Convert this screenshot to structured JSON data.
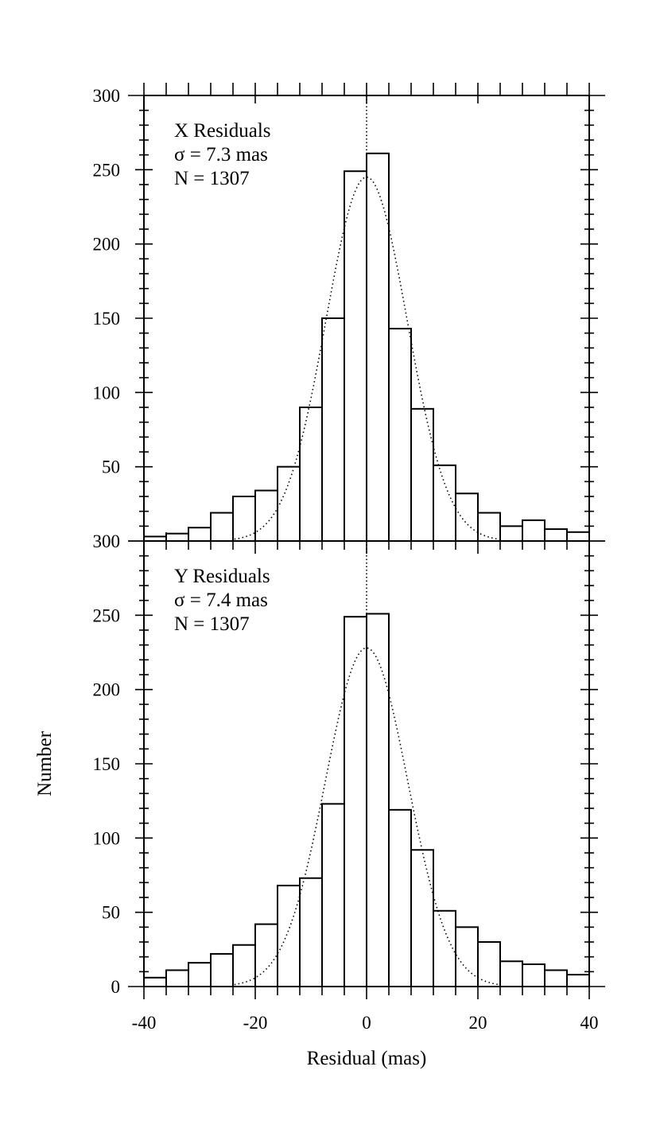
{
  "figure": {
    "ylabel": "Number",
    "xlabel": "Residual (mas)"
  },
  "chart_data": [
    {
      "type": "bar",
      "panel": "top",
      "annotations": [
        "X Residuals",
        "σ = 7.3 mas",
        "N = 1307"
      ],
      "bin_edges": [
        -40,
        -36,
        -32,
        -28,
        -24,
        -20,
        -16,
        -12,
        -8,
        -4,
        0,
        4,
        8,
        12,
        16,
        20,
        24,
        28,
        32,
        36,
        40
      ],
      "values": [
        3,
        5,
        9,
        19,
        30,
        34,
        50,
        90,
        150,
        249,
        261,
        143,
        89,
        51,
        32,
        19,
        10,
        14,
        8,
        6
      ],
      "fit_curve": {
        "kind": "gaussian",
        "amplitude": 245,
        "mean": 0,
        "sigma": 7.3
      },
      "reference_line_x": 0,
      "xlim": [
        -40,
        40
      ],
      "ylim": [
        0,
        300
      ],
      "ytick_labels": [
        "50",
        "100",
        "150",
        "200",
        "250",
        "300"
      ],
      "ytick_values": [
        50,
        100,
        150,
        200,
        250,
        300
      ],
      "xtick_labels": [],
      "grid": false
    },
    {
      "type": "bar",
      "panel": "bottom",
      "annotations": [
        "Y Residuals",
        "σ = 7.4 mas",
        "N = 1307"
      ],
      "bin_edges": [
        -40,
        -36,
        -32,
        -28,
        -24,
        -20,
        -16,
        -12,
        -8,
        -4,
        0,
        4,
        8,
        12,
        16,
        20,
        24,
        28,
        32,
        36,
        40
      ],
      "values": [
        6,
        11,
        16,
        22,
        28,
        42,
        68,
        73,
        123,
        249,
        251,
        119,
        92,
        51,
        40,
        30,
        17,
        15,
        11,
        8
      ],
      "fit_curve": {
        "kind": "gaussian",
        "amplitude": 228,
        "mean": 0,
        "sigma": 7.4
      },
      "reference_line_x": 0,
      "xlim": [
        -40,
        40
      ],
      "ylim": [
        0,
        300
      ],
      "ytick_labels": [
        "0",
        "50",
        "100",
        "150",
        "200",
        "250",
        "300"
      ],
      "ytick_values": [
        0,
        50,
        100,
        150,
        200,
        250,
        300
      ],
      "xtick_labels": [
        "-40",
        "-20",
        "0",
        "20",
        "40"
      ],
      "xtick_values": [
        -40,
        -20,
        0,
        20,
        40
      ],
      "grid": false
    }
  ]
}
